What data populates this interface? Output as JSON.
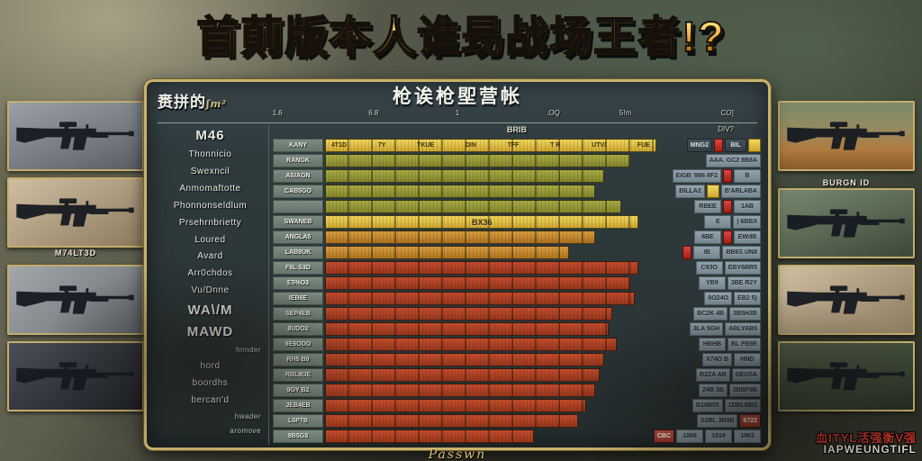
{
  "title": "首萴版夲人谁昮战场王者!?",
  "panel": {
    "header": "枪诶枪堲营帐",
    "corner_label": "赉拼的",
    "corner_squiggle": "ʃm²",
    "strip_center": "BRIB",
    "strip_right": "DIV?",
    "footer_script": "Passwn",
    "ruler_ticks": [
      {
        "t": "1.6",
        "x": 20
      },
      {
        "t": "6.8",
        "x": 36
      },
      {
        "t": "1",
        "x": 50
      },
      {
        "t": ".OQ",
        "x": 66
      },
      {
        "t": "5!m",
        "x": 78
      },
      {
        "t": "CO]",
        "x": 95
      }
    ]
  },
  "sidebar": {
    "items": [
      {
        "t": "M46",
        "size": "lg"
      },
      {
        "t": "Thonnicio",
        "size": "md"
      },
      {
        "t": "Swexncil",
        "size": "md"
      },
      {
        "t": "Anmomaftotte",
        "size": "md"
      },
      {
        "t": "Phonnonseldlum",
        "size": "md"
      },
      {
        "t": "Prsehrnbrietty",
        "size": "md"
      },
      {
        "t": "Loured",
        "size": "md"
      },
      {
        "t": "Avard",
        "size": "md"
      },
      {
        "t": "Arr0chdos",
        "size": "md"
      },
      {
        "t": "Vu/Dnne",
        "size": "md"
      },
      {
        "t": "WA\\/M",
        "size": "lg"
      },
      {
        "t": "MAWD",
        "size": "lg"
      },
      {
        "t": "hnnder",
        "size": "sm"
      },
      {
        "t": "hord",
        "size": "md"
      },
      {
        "t": "boordhs",
        "size": "md"
      },
      {
        "t": "bercan'd",
        "size": "md"
      },
      {
        "t": "hwader",
        "size": "sm"
      },
      {
        "t": "aromove",
        "size": "sm"
      }
    ]
  },
  "table": {
    "rows": [
      {
        "label": "KANY",
        "color": "yellow",
        "w": 76,
        "center": "",
        "bar_texts": [
          "4T1D",
          "7Y",
          "TKUE",
          "DIN",
          "TFF",
          "T R",
          "UTV/",
          "FUE"
        ],
        "cells": [
          {
            "t": "MNG2",
            "k": "dark"
          },
          {
            "t": "",
            "k": "redbadge"
          },
          {
            "t": "BIL",
            "k": "dark"
          },
          {
            "t": "",
            "k": "yellowbadge"
          }
        ]
      },
      {
        "label": "RANGK",
        "color": "olive",
        "w": 70,
        "center": "",
        "bar_texts": [],
        "cells": [
          {
            "t": "AAA. GC2 8B8A",
            "k": "gray"
          }
        ]
      },
      {
        "label": "ASIAGN",
        "color": "olive",
        "w": 64,
        "center": "",
        "bar_texts": [],
        "cells": [
          {
            "t": "EIGB '986 8F2",
            "k": "gray"
          },
          {
            "t": "",
            "k": "redbadge"
          },
          {
            "t": "B",
            "k": "gray"
          }
        ]
      },
      {
        "label": "CAB5GO",
        "color": "olive",
        "w": 62,
        "center": "",
        "bar_texts": [],
        "cells": [
          {
            "t": "BILLA2",
            "k": "gray"
          },
          {
            "t": "",
            "k": "yellowbadge"
          },
          {
            "t": "B'ARLABA",
            "k": "gray"
          }
        ]
      },
      {
        "label": "",
        "color": "olive",
        "w": 68,
        "center": "",
        "bar_texts": [],
        "cells": [
          {
            "t": "RBEE",
            "k": "gray"
          },
          {
            "t": "",
            "k": "redbadge"
          },
          {
            "t": "1AB",
            "k": "gray"
          }
        ]
      },
      {
        "label": "SWANEB",
        "color": "yellow",
        "w": 72,
        "center": "BX36",
        "bar_texts": [],
        "cells": [
          {
            "t": "E",
            "k": "gray"
          },
          {
            "t": "| 6BBX",
            "k": "gray"
          }
        ]
      },
      {
        "label": "ANGLA5",
        "color": "orange",
        "w": 62,
        "center": "",
        "bar_texts": [],
        "cells": [
          {
            "t": "6BE",
            "k": "gray"
          },
          {
            "t": "",
            "k": "redbadge"
          },
          {
            "t": "EWdB",
            "k": "gray"
          }
        ]
      },
      {
        "label": "LAB9UK",
        "color": "orange",
        "w": 56,
        "center": "",
        "bar_texts": [],
        "cells": [
          {
            "t": "",
            "k": "redbadge"
          },
          {
            "t": "IB",
            "k": "gray"
          },
          {
            "t": "BB6S UN8",
            "k": "gray"
          }
        ]
      },
      {
        "label": "F6L S3D",
        "color": "red",
        "w": 72,
        "center": "",
        "bar_texts": [],
        "cells": [
          {
            "t": "C93O",
            "k": "gray"
          },
          {
            "t": "EBY6BR5",
            "k": "gray"
          }
        ]
      },
      {
        "label": "E5%O3",
        "color": "red",
        "w": 70,
        "center": "",
        "bar_texts": [],
        "cells": [
          {
            "t": "YB9",
            "k": "gray"
          },
          {
            "t": "3BE R2Y",
            "k": "gray"
          }
        ]
      },
      {
        "label": "IEB6E",
        "color": "red",
        "w": 71,
        "center": "",
        "bar_texts": [],
        "cells": [
          {
            "t": "9O24O",
            "k": "gray"
          },
          {
            "t": "EB2 5)",
            "k": "gray"
          }
        ]
      },
      {
        "label": "SEP4EB",
        "color": "red",
        "w": 66,
        "center": "",
        "bar_texts": [],
        "cells": [
          {
            "t": "BC2K 4B",
            "k": "gray"
          },
          {
            "t": "3B5H3B",
            "k": "gray"
          }
        ]
      },
      {
        "label": "8UDO2",
        "color": "red",
        "w": 65,
        "center": "",
        "bar_texts": [],
        "cells": [
          {
            "t": "3LA 5GH",
            "k": "gray"
          },
          {
            "t": "ABLYAB5",
            "k": "gray"
          }
        ]
      },
      {
        "label": "9E6ODO",
        "color": "red",
        "w": 67,
        "center": "",
        "bar_texts": [],
        "cells": [
          {
            "t": "HBHB",
            "k": "gray"
          },
          {
            "t": "BL FB9E",
            "k": "gray"
          }
        ]
      },
      {
        "label": "RH5 B9",
        "color": "red",
        "w": 64,
        "center": "",
        "bar_texts": [],
        "cells": [
          {
            "t": "X74O B",
            "k": "gray"
          },
          {
            "t": "HND",
            "k": "gray"
          }
        ]
      },
      {
        "label": "RBL9UE",
        "color": "red",
        "w": 63,
        "center": "",
        "bar_texts": [],
        "cells": [
          {
            "t": "B2ZA AB",
            "k": "gray"
          },
          {
            "t": "DEG5A",
            "k": "gray"
          }
        ]
      },
      {
        "label": "9OY B2",
        "color": "red",
        "w": 62,
        "center": "",
        "bar_texts": [],
        "cells": [
          {
            "t": "24B 3B",
            "k": "gray"
          },
          {
            "t": "3BBF9B",
            "k": "gray"
          }
        ]
      },
      {
        "label": "JEB4EB",
        "color": "red",
        "w": 60,
        "center": "",
        "bar_texts": [],
        "cells": [
          {
            "t": "B16B55",
            "k": "gray"
          },
          {
            "t": "1DBLBB2",
            "k": "gray"
          }
        ]
      },
      {
        "label": "L5P7B",
        "color": "red",
        "w": 58,
        "center": "",
        "bar_texts": [],
        "cells": [
          {
            "t": "S2BL 3B9B",
            "k": "gray"
          },
          {
            "t": "6722",
            "k": "redtext"
          }
        ]
      },
      {
        "label": "9B5G3",
        "color": "red",
        "w": 48,
        "center": "",
        "bar_texts": [],
        "cells": [
          {
            "t": "CBC",
            "k": "redtext"
          },
          {
            "t": "1069",
            "k": "gray"
          },
          {
            "t": "1919",
            "k": "gray"
          },
          {
            "t": "1963",
            "k": "gray"
          }
        ]
      }
    ]
  },
  "weapons": {
    "left": [
      {
        "label": "",
        "label_pos": "none",
        "bg": "gray"
      },
      {
        "label": "M74LT3D",
        "label_pos": "below",
        "bg": "tan"
      },
      {
        "label": "",
        "label_pos": "none",
        "bg": "gray2"
      },
      {
        "label": "",
        "label_pos": "none",
        "bg": "dark"
      }
    ],
    "right": [
      {
        "label": "",
        "label_pos": "none",
        "bg": "field"
      },
      {
        "label": "BURGN ID",
        "label_pos": "above",
        "bg": "green"
      },
      {
        "label": "",
        "label_pos": "none",
        "bg": "tan"
      },
      {
        "label": "",
        "label_pos": "none",
        "bg": "darkgreen"
      }
    ]
  },
  "watermark": {
    "line1": "血ITYL活强衡V强",
    "line2": "IAPWEUNGTIFL"
  }
}
